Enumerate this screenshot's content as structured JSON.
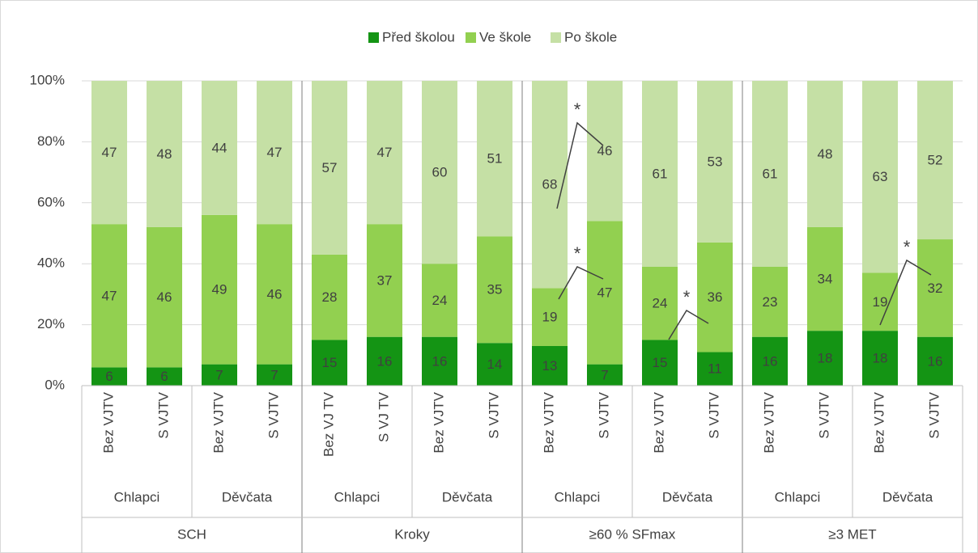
{
  "chart_data": {
    "type": "stacked_bar",
    "categories": [
      "Bez VJTV",
      "S VJTV",
      "Bez VJTV",
      "S VJTV",
      "Bez VJ TV",
      "S VJ TV",
      "Bez VJTV",
      "S VJTV",
      "Bez VJTV",
      "S VJTV",
      "Bez VJTV",
      "S VJTV",
      "Bez VJTV",
      "S VJTV",
      "Bez VJTV",
      "S VJTV"
    ],
    "groups": [
      "Chlapci",
      "Děvčata",
      "Chlapci",
      "Děvčata",
      "Chlapci",
      "Děvčata",
      "Chlapci",
      "Děvčata"
    ],
    "supergroups": [
      "SCH",
      "Kroky",
      "≥60 % SFmax",
      "≥3 MET"
    ],
    "series": [
      {
        "name": "Před školou",
        "color": "#149414",
        "values": [
          6,
          6,
          7,
          7,
          15,
          16,
          16,
          14,
          13,
          7,
          15,
          11,
          16,
          18,
          18,
          16
        ]
      },
      {
        "name": "Ve škole",
        "color": "#92d050",
        "values": [
          47,
          46,
          49,
          46,
          28,
          37,
          24,
          35,
          19,
          47,
          24,
          36,
          23,
          34,
          19,
          32
        ]
      },
      {
        "name": "Po škole",
        "color": "#c5e0a5",
        "values": [
          47,
          48,
          44,
          47,
          57,
          47,
          60,
          51,
          68,
          46,
          61,
          53,
          61,
          48,
          63,
          52
        ]
      }
    ],
    "ylim": [
      0,
      100
    ],
    "yticks": [
      {
        "value": 0,
        "label": "0%"
      },
      {
        "value": 20,
        "label": "20%"
      },
      {
        "value": 40,
        "label": "40%"
      },
      {
        "value": 60,
        "label": "60%"
      },
      {
        "value": 80,
        "label": "80%"
      },
      {
        "value": 100,
        "label": "100%"
      }
    ],
    "grid": true,
    "legend": "top",
    "annotations": [
      "*",
      "*",
      "*",
      "*"
    ]
  }
}
